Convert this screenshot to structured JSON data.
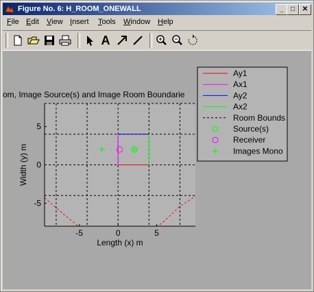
{
  "window": {
    "title": "Figure No. 6: H_ROOM_ONEWALL",
    "buttons": {
      "minimize": "_",
      "maximize": "□",
      "close": "✕"
    }
  },
  "menu": [
    {
      "label": "File",
      "hot": "F"
    },
    {
      "label": "Edit",
      "hot": "E"
    },
    {
      "label": "View",
      "hot": "V"
    },
    {
      "label": "Insert",
      "hot": "I"
    },
    {
      "label": "Tools",
      "hot": "T"
    },
    {
      "label": "Window",
      "hot": "W"
    },
    {
      "label": "Help",
      "hot": "H"
    }
  ],
  "toolbar": {
    "tools": [
      "new-file-icon",
      "open-folder-icon",
      "save-icon",
      "print-icon",
      "pointer-icon",
      "text-icon",
      "arrow-icon",
      "line-icon",
      "zoom-in-icon",
      "zoom-out-icon",
      "rotate-icon"
    ],
    "text_tool_label": "A"
  },
  "chart_data": {
    "type": "line",
    "title": "om, Image Source(s) and Image Room Boundarie",
    "xlabel": "Length (x) m",
    "ylabel": "Width (y) m",
    "xlim": [
      -9.5,
      10
    ],
    "ylim": [
      -8,
      8
    ],
    "xticks": [
      -5,
      0,
      5
    ],
    "yticks": [
      5,
      0,
      -5
    ],
    "xtick_labels": [
      "-5",
      "0",
      "5"
    ],
    "ytick_labels": [
      "5",
      "0",
      "-5"
    ],
    "grid": true,
    "grid_lines_x": [
      -8,
      -4,
      0,
      4,
      8
    ],
    "grid_lines_y": [
      -4,
      0,
      4,
      8
    ],
    "legend_placement": "right",
    "series": [
      {
        "name": "Ay1",
        "color": "#ff0000",
        "style": "solid",
        "x": [
          0,
          4
        ],
        "y": [
          0,
          0
        ]
      },
      {
        "name": "Ax1",
        "color": "#ff00ff",
        "style": "solid",
        "x": [
          0,
          0
        ],
        "y": [
          0,
          4
        ]
      },
      {
        "name": "Ay2",
        "color": "#0000ff",
        "style": "solid",
        "x": [
          0,
          4
        ],
        "y": [
          4,
          4
        ]
      },
      {
        "name": "Ax2",
        "color": "#00ff00",
        "style": "solid",
        "x": [
          4,
          4
        ],
        "y": [
          0,
          4
        ]
      },
      {
        "name": "Room Bounds",
        "color": "#000000",
        "style": "dashed"
      },
      {
        "name": "Source(s)",
        "color": "#00ff00",
        "marker": "circle",
        "x": [
          2.1
        ],
        "y": [
          2
        ]
      },
      {
        "name": "Receiver",
        "color": "#ff00ff",
        "marker": "circle",
        "x": [
          0.2
        ],
        "y": [
          2
        ]
      },
      {
        "name": "Images Mono",
        "color": "#00ff00",
        "marker": "plus",
        "x": [
          -2.1,
          2.1
        ],
        "y": [
          2,
          2
        ]
      }
    ],
    "red_dashed_curve": {
      "color": "#ff0000",
      "x": [
        -9.5,
        -8,
        -6,
        -4,
        -2,
        0,
        2,
        4,
        6,
        8,
        10
      ],
      "y": [
        -4.3,
        -5.6,
        -7.3,
        -8.9,
        -10,
        -10.4,
        -10,
        -8.9,
        -7.3,
        -5.4,
        -4.1
      ]
    }
  }
}
